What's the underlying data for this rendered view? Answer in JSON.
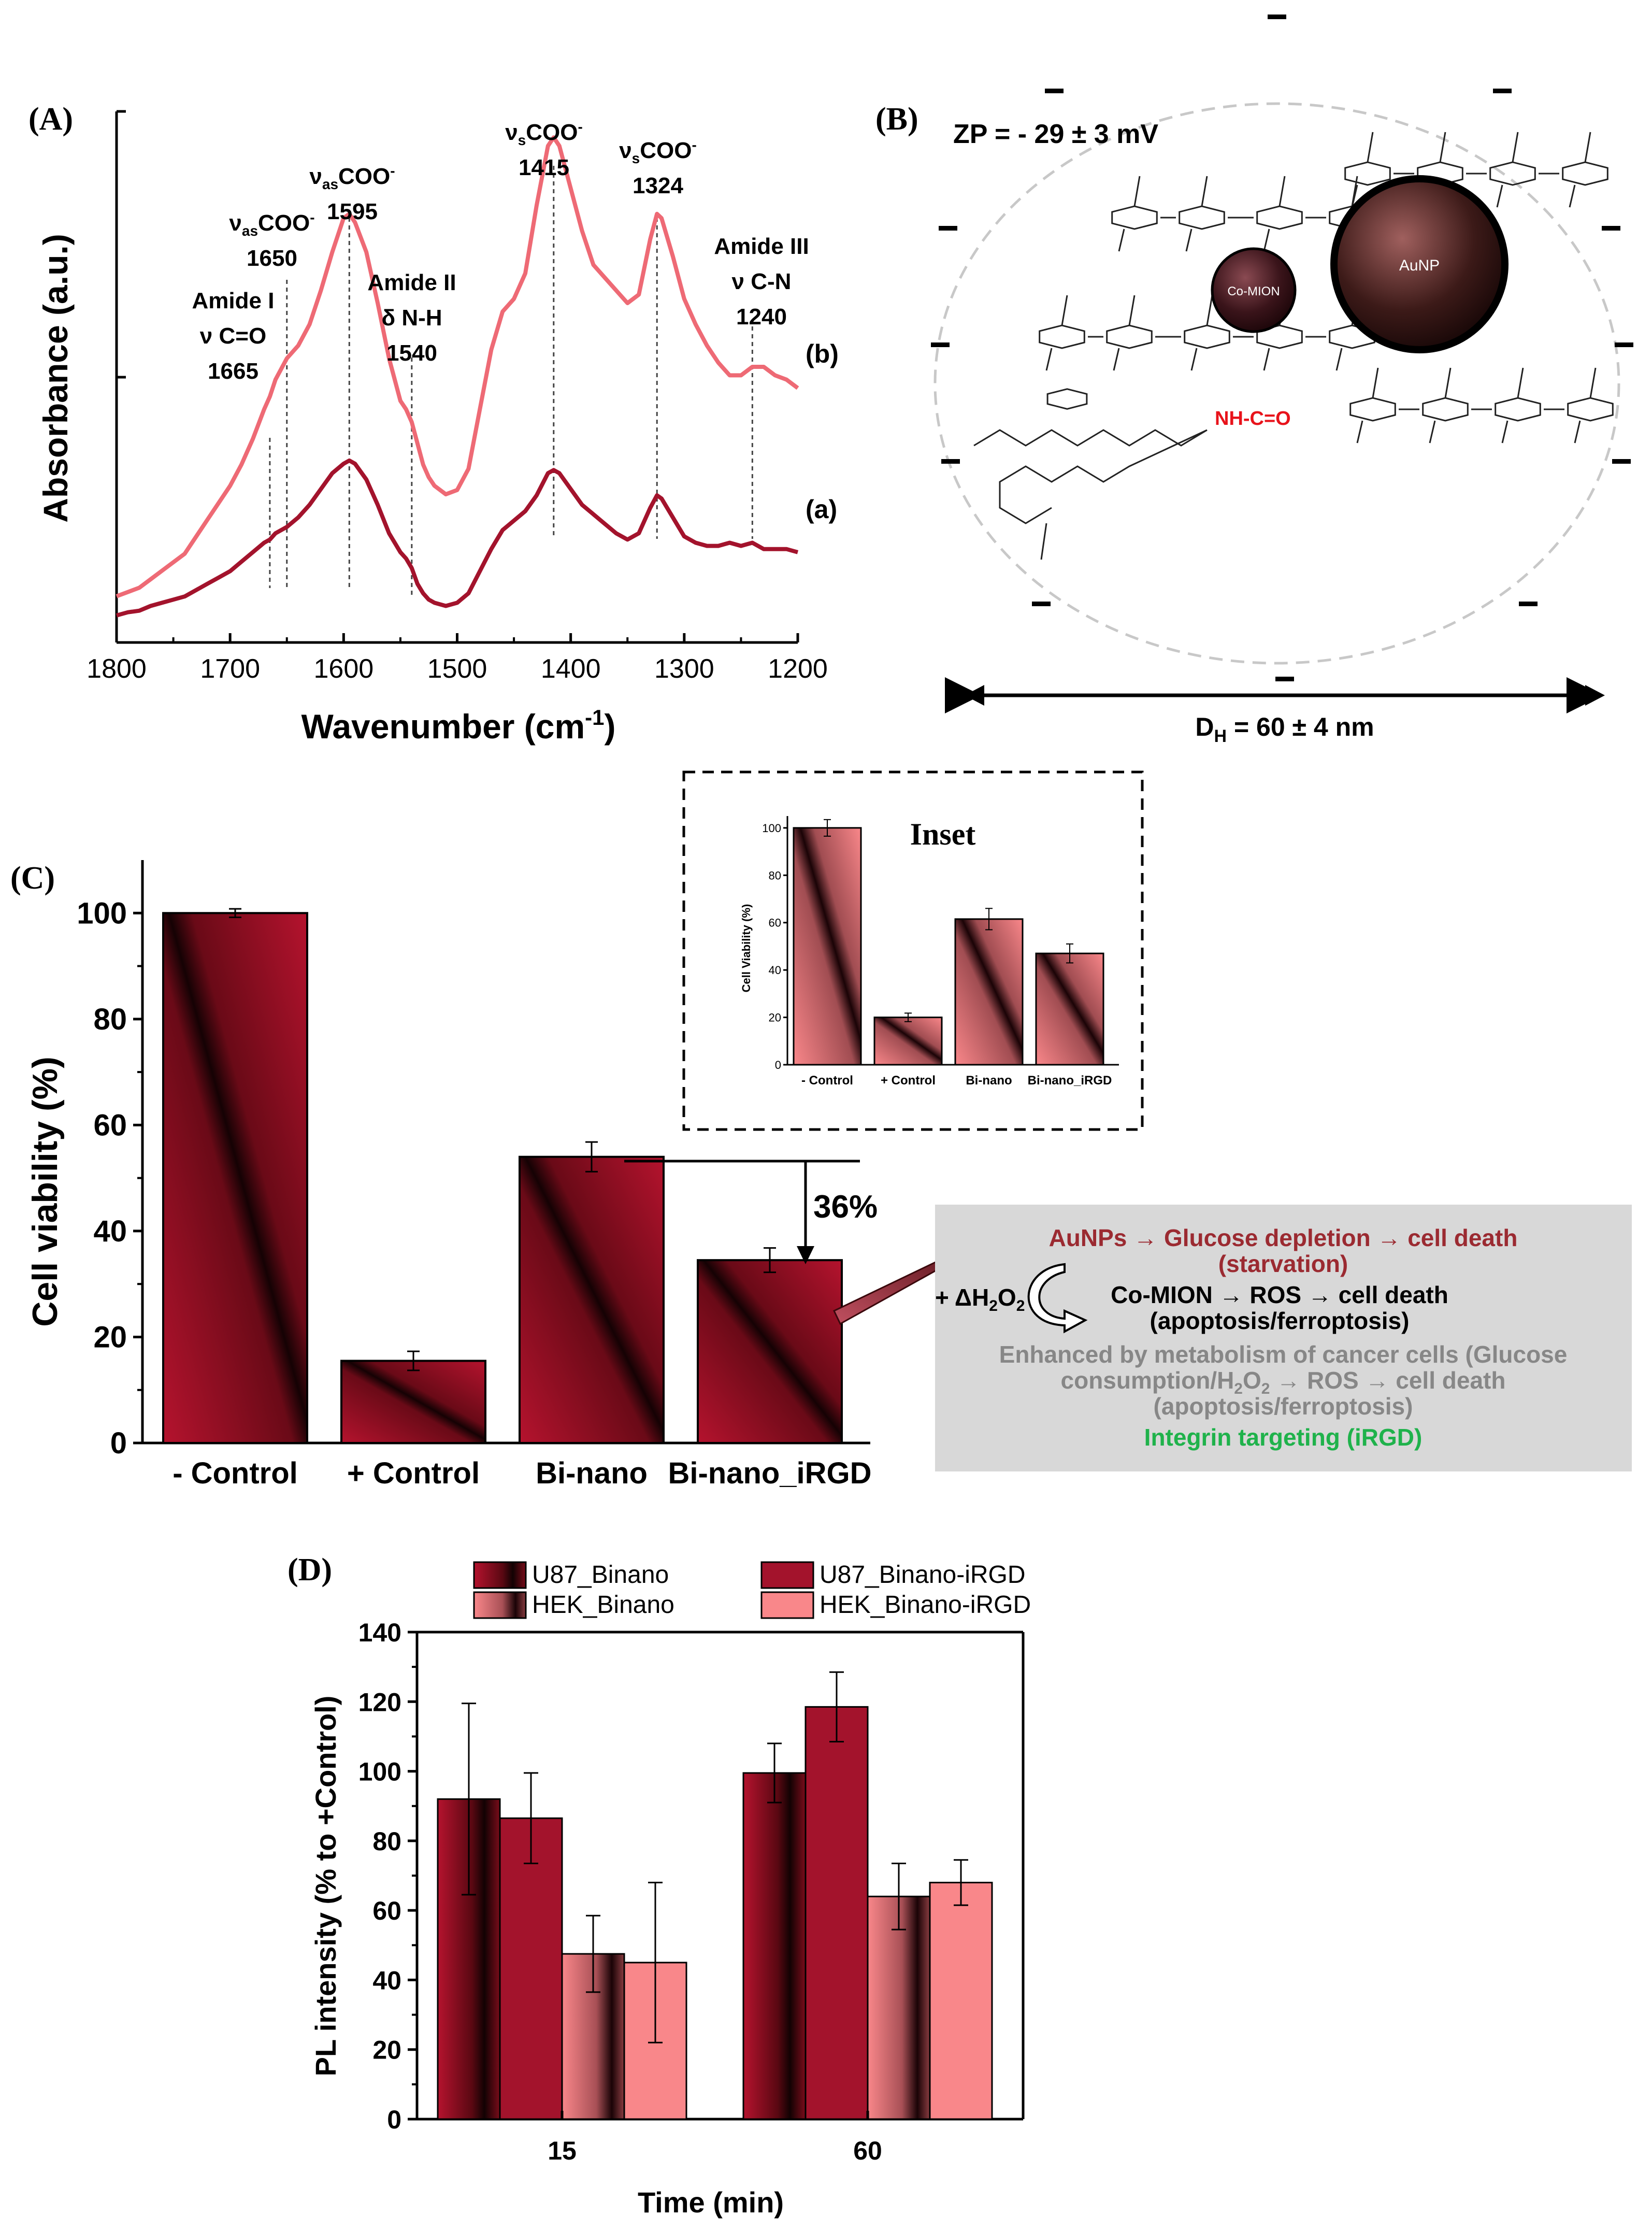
{
  "colors": {
    "dark_red": "#a3132c",
    "pink": "#ee6a75",
    "bar_light": "#f9878a",
    "bar_dark": "#1a0306",
    "text_red": "#9b2a31",
    "text_grey": "#878787",
    "text_green": "#1fb24b",
    "chem_red": "#e8131b"
  },
  "panels": {
    "a_label": "(A)",
    "b_label": "(B)",
    "c_label": "(C)",
    "d_label": "(D)"
  },
  "panel_b": {
    "zeta": "ZP = - 29 ± 3 mV",
    "diameter": "DH = 60 ± 4 nm",
    "co_mion": "Co-MION",
    "aunp": "AuNP",
    "amide_bond": "NH-C=O"
  },
  "chart_data": [
    {
      "id": "A",
      "type": "line",
      "xlabel": "Wavenumber (cm-1)",
      "ylabel": "Absorbance (a.u.)",
      "xlim": [
        1800,
        1200
      ],
      "xticks": [
        1800,
        1700,
        1600,
        1500,
        1400,
        1300,
        1200
      ],
      "series": [
        {
          "name": "(a)",
          "x": [
            1800,
            1790,
            1780,
            1770,
            1760,
            1750,
            1740,
            1730,
            1720,
            1710,
            1700,
            1690,
            1680,
            1670,
            1665,
            1660,
            1650,
            1640,
            1630,
            1620,
            1610,
            1600,
            1595,
            1590,
            1580,
            1570,
            1560,
            1550,
            1545,
            1540,
            1535,
            1530,
            1525,
            1520,
            1510,
            1500,
            1490,
            1480,
            1470,
            1460,
            1450,
            1440,
            1430,
            1420,
            1415,
            1410,
            1400,
            1390,
            1380,
            1370,
            1360,
            1350,
            1340,
            1330,
            1324,
            1320,
            1310,
            1300,
            1290,
            1280,
            1270,
            1260,
            1250,
            1240,
            1230,
            1220,
            1210,
            1200
          ],
          "y": [
            0.02,
            0.03,
            0.035,
            0.05,
            0.06,
            0.07,
            0.08,
            0.1,
            0.12,
            0.14,
            0.16,
            0.19,
            0.22,
            0.25,
            0.26,
            0.28,
            0.3,
            0.33,
            0.37,
            0.42,
            0.47,
            0.5,
            0.51,
            0.5,
            0.45,
            0.37,
            0.28,
            0.22,
            0.2,
            0.17,
            0.12,
            0.09,
            0.07,
            0.06,
            0.05,
            0.06,
            0.09,
            0.16,
            0.23,
            0.29,
            0.32,
            0.35,
            0.4,
            0.47,
            0.48,
            0.47,
            0.42,
            0.37,
            0.34,
            0.31,
            0.28,
            0.26,
            0.28,
            0.36,
            0.4,
            0.39,
            0.33,
            0.27,
            0.25,
            0.24,
            0.24,
            0.25,
            0.24,
            0.25,
            0.23,
            0.23,
            0.23,
            0.22
          ]
        },
        {
          "name": "(b)",
          "x": [
            1800,
            1790,
            1780,
            1770,
            1760,
            1750,
            1740,
            1730,
            1720,
            1710,
            1700,
            1690,
            1680,
            1670,
            1665,
            1660,
            1650,
            1640,
            1630,
            1620,
            1610,
            1600,
            1595,
            1590,
            1580,
            1570,
            1560,
            1550,
            1545,
            1540,
            1535,
            1530,
            1525,
            1520,
            1510,
            1500,
            1490,
            1480,
            1470,
            1460,
            1450,
            1440,
            1430,
            1420,
            1415,
            1410,
            1400,
            1390,
            1380,
            1370,
            1360,
            1350,
            1340,
            1330,
            1324,
            1320,
            1310,
            1300,
            1290,
            1280,
            1270,
            1260,
            1250,
            1240,
            1230,
            1220,
            1210,
            1200
          ],
          "y": [
            0.06,
            0.07,
            0.08,
            0.1,
            0.12,
            0.14,
            0.16,
            0.2,
            0.24,
            0.28,
            0.32,
            0.37,
            0.43,
            0.5,
            0.53,
            0.57,
            0.62,
            0.65,
            0.7,
            0.78,
            0.87,
            0.95,
            0.96,
            0.94,
            0.87,
            0.75,
            0.62,
            0.52,
            0.5,
            0.47,
            0.42,
            0.37,
            0.34,
            0.32,
            0.3,
            0.31,
            0.36,
            0.5,
            0.64,
            0.73,
            0.76,
            0.82,
            0.98,
            1.12,
            1.14,
            1.12,
            1.02,
            0.92,
            0.84,
            0.81,
            0.78,
            0.75,
            0.77,
            0.9,
            0.96,
            0.95,
            0.86,
            0.76,
            0.7,
            0.65,
            0.61,
            0.58,
            0.58,
            0.6,
            0.6,
            0.58,
            0.57,
            0.55
          ]
        }
      ],
      "series_labels": [
        "(b)",
        "(a)"
      ],
      "annotations": [
        {
          "lines": [
            "Amide I",
            "ν C=O",
            "1665"
          ],
          "x": 1665
        },
        {
          "lines": [
            "νasCOO-",
            "1650"
          ],
          "x": 1650
        },
        {
          "lines": [
            "νasCOO-",
            "1595"
          ],
          "x": 1595
        },
        {
          "lines": [
            "Amide II",
            "δ N-H",
            "1540"
          ],
          "x": 1540
        },
        {
          "lines": [
            "νsCOO-",
            "1415"
          ],
          "x": 1415
        },
        {
          "lines": [
            "νsCOO-",
            "1324"
          ],
          "x": 1324
        },
        {
          "lines": [
            "Amide III",
            "ν C-N",
            "1240"
          ],
          "x": 1240
        }
      ]
    },
    {
      "id": "C",
      "type": "bar",
      "ylabel": "Cell viability (%)",
      "ylim": [
        0,
        110
      ],
      "yticks": [
        0,
        20,
        40,
        60,
        80,
        100
      ],
      "categories": [
        "- Control",
        "+ Control",
        "Bi-nano",
        "Bi-nano_iRGD"
      ],
      "values": [
        100,
        15.5,
        54,
        34.5
      ],
      "errors": [
        0.8,
        1.8,
        2.8,
        2.3
      ],
      "annotation": "36%"
    },
    {
      "id": "C-inset",
      "type": "bar",
      "title": "Inset",
      "ylabel": "Cell Viability (%)",
      "ylim": [
        0,
        105
      ],
      "yticks": [
        0,
        20,
        40,
        60,
        80,
        100
      ],
      "categories": [
        "- Control",
        "+ Control",
        "Bi-nano",
        "Bi-nano_iRGD"
      ],
      "values": [
        100,
        20,
        61.5,
        47
      ],
      "errors": [
        3.5,
        1.8,
        4.5,
        4
      ]
    },
    {
      "id": "D",
      "type": "bar",
      "xlabel": "Time (min)",
      "ylabel": "PL intensity (% to +Control)",
      "ylim": [
        0,
        140
      ],
      "yticks": [
        0,
        20,
        40,
        60,
        80,
        100,
        120,
        140
      ],
      "categories": [
        "15",
        "60"
      ],
      "series": [
        {
          "name": "U87_Binano",
          "values": [
            92,
            99.5
          ],
          "errors": [
            27.5,
            8.5
          ]
        },
        {
          "name": "U87_Binano-iRGD",
          "values": [
            86.5,
            118.5
          ],
          "errors": [
            13,
            10
          ]
        },
        {
          "name": "HEK_Binano",
          "values": [
            47.5,
            64
          ],
          "errors": [
            11,
            9.5
          ]
        },
        {
          "name": "HEK_Binano-iRGD",
          "values": [
            45,
            68
          ],
          "errors": [
            23,
            6.5
          ]
        }
      ]
    }
  ],
  "mechanism_box": {
    "line1": "AuNPs → Glucose depletion → cell death",
    "line2": "(starvation)",
    "h2o2": "+ ΔH2O2",
    "line3": "Co-MION → ROS → cell death",
    "line4": "(apoptosis/ferroptosis)",
    "line5": "Enhanced by metabolism of cancer cells (Glucose",
    "line6": "consumption/H2O2 → ROS → cell death",
    "line7": "(apoptosis/ferroptosis)",
    "line8": "Integrin targeting (iRGD)"
  }
}
